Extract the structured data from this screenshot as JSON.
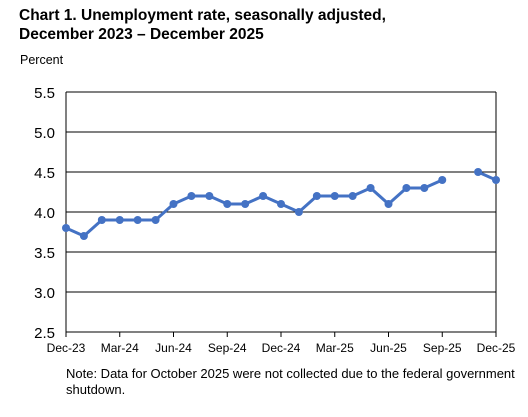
{
  "title_line1": "Chart 1. Unemployment rate, seasonally adjusted,",
  "title_line2": "December 2023 – December 2025",
  "note": "Note: Data for October 2025 were not collected due to the federal government shutdown.",
  "chart_data": {
    "type": "line",
    "ylabel": "Percent",
    "xlabel": "",
    "ylim": [
      2.5,
      5.5
    ],
    "yticks": [
      "2.5",
      "3.0",
      "3.5",
      "4.0",
      "4.5",
      "5.0",
      "5.5"
    ],
    "grid": "horizontal",
    "x": [
      "Dec-23",
      "Jan-24",
      "Feb-24",
      "Mar-24",
      "Apr-24",
      "May-24",
      "Jun-24",
      "Jul-24",
      "Aug-24",
      "Sep-24",
      "Oct-24",
      "Nov-24",
      "Dec-24",
      "Jan-25",
      "Feb-25",
      "Mar-25",
      "Apr-25",
      "May-25",
      "Jun-25",
      "Jul-25",
      "Aug-25",
      "Sep-25",
      "Oct-25",
      "Nov-25",
      "Dec-25"
    ],
    "xtick_labels": [
      "Dec-23",
      "Mar-24",
      "Jun-24",
      "Sep-24",
      "Dec-24",
      "Mar-25",
      "Jun-25",
      "Sep-25",
      "Dec-25"
    ],
    "xtick_indices": [
      0,
      3,
      6,
      9,
      12,
      15,
      18,
      21,
      24
    ],
    "series": [
      {
        "color": "#4472C4",
        "values": [
          3.8,
          3.7,
          3.9,
          3.9,
          3.9,
          3.9,
          4.1,
          4.2,
          4.2,
          4.1,
          4.1,
          4.2,
          4.1,
          4.0,
          4.2,
          4.2,
          4.2,
          4.3,
          4.1,
          4.3,
          4.3,
          4.4,
          null,
          4.5,
          4.4
        ]
      }
    ]
  }
}
